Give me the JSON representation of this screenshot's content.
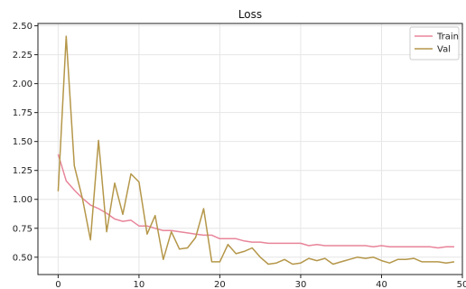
{
  "chart_data": {
    "type": "line",
    "title": "Loss",
    "xlabel": "",
    "ylabel": "",
    "xlim": [
      -2.5,
      50
    ],
    "ylim": [
      0.35,
      2.52
    ],
    "xticks": [
      0,
      10,
      20,
      30,
      40,
      50
    ],
    "yticks": [
      0.5,
      0.75,
      1.0,
      1.25,
      1.5,
      1.75,
      2.0,
      2.25,
      2.5
    ],
    "grid": true,
    "legend_position": "top-right",
    "series": [
      {
        "name": "Train",
        "color": "#e8859a",
        "x": [
          0,
          1,
          2,
          3,
          4,
          5,
          6,
          7,
          8,
          9,
          10,
          11,
          12,
          13,
          14,
          15,
          16,
          17,
          18,
          19,
          20,
          21,
          22,
          23,
          24,
          25,
          26,
          27,
          28,
          29,
          30,
          31,
          32,
          33,
          34,
          35,
          36,
          37,
          38,
          39,
          40,
          41,
          42,
          43,
          44,
          45,
          46,
          47,
          48,
          49
        ],
        "values": [
          1.39,
          1.16,
          1.08,
          1.01,
          0.95,
          0.92,
          0.88,
          0.83,
          0.81,
          0.82,
          0.77,
          0.77,
          0.75,
          0.73,
          0.73,
          0.72,
          0.71,
          0.7,
          0.69,
          0.69,
          0.66,
          0.66,
          0.66,
          0.64,
          0.63,
          0.63,
          0.62,
          0.62,
          0.62,
          0.62,
          0.62,
          0.6,
          0.61,
          0.6,
          0.6,
          0.6,
          0.6,
          0.6,
          0.6,
          0.59,
          0.6,
          0.59,
          0.59,
          0.59,
          0.59,
          0.59,
          0.59,
          0.58,
          0.59,
          0.59
        ]
      },
      {
        "name": "Val",
        "color": "#b5974a",
        "x": [
          0,
          1,
          2,
          3,
          4,
          5,
          6,
          7,
          8,
          9,
          10,
          11,
          12,
          13,
          14,
          15,
          16,
          17,
          18,
          19,
          20,
          21,
          22,
          23,
          24,
          25,
          26,
          27,
          28,
          29,
          30,
          31,
          32,
          33,
          34,
          35,
          36,
          37,
          38,
          39,
          40,
          41,
          42,
          43,
          44,
          45,
          46,
          47,
          48,
          49
        ],
        "values": [
          1.07,
          2.41,
          1.29,
          1.01,
          0.65,
          1.51,
          0.72,
          1.14,
          0.87,
          1.22,
          1.15,
          0.7,
          0.86,
          0.48,
          0.72,
          0.57,
          0.58,
          0.67,
          0.92,
          0.46,
          0.46,
          0.61,
          0.53,
          0.55,
          0.58,
          0.5,
          0.44,
          0.45,
          0.48,
          0.44,
          0.45,
          0.49,
          0.47,
          0.49,
          0.44,
          0.46,
          0.48,
          0.5,
          0.49,
          0.5,
          0.47,
          0.45,
          0.48,
          0.48,
          0.49,
          0.46,
          0.46,
          0.46,
          0.45,
          0.46
        ]
      }
    ]
  }
}
